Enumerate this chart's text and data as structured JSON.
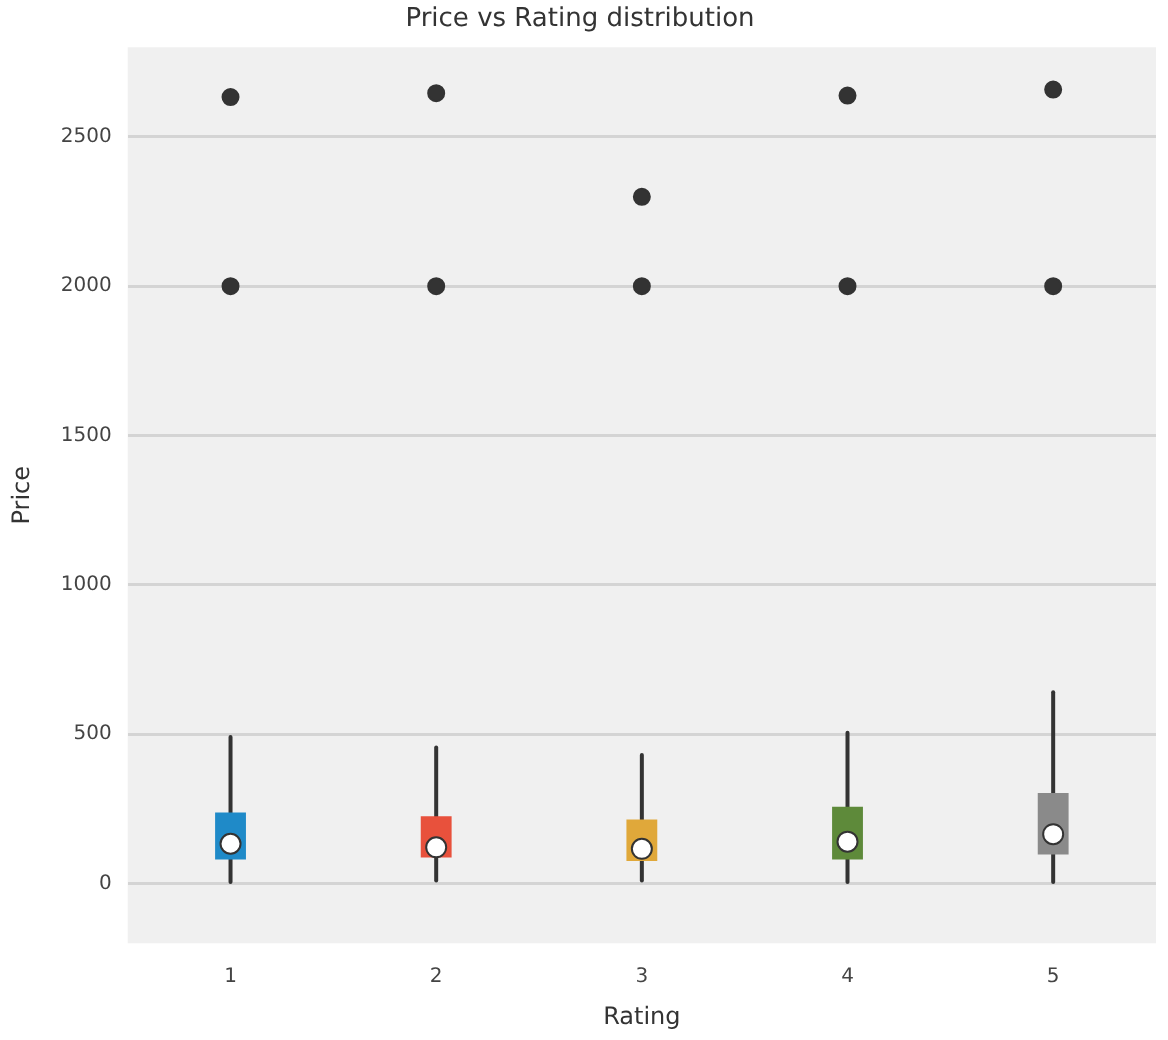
{
  "chart_data": {
    "type": "box",
    "title": "Price vs Rating distribution",
    "xlabel": "Rating",
    "ylabel": "Price",
    "categories": [
      "1",
      "2",
      "3",
      "4",
      "5"
    ],
    "colors": [
      "#1f8ac8",
      "#e8513c",
      "#e0a83a",
      "#5e8a3a",
      "#8a8a8a"
    ],
    "boxes": [
      {
        "low": 5,
        "q1": 80,
        "median": 133,
        "q3": 238,
        "high": 490,
        "outliers": [
          2000,
          2633
        ]
      },
      {
        "low": 10,
        "q1": 87,
        "median": 121,
        "q3": 225,
        "high": 455,
        "outliers": [
          2000,
          2646
        ]
      },
      {
        "low": 10,
        "q1": 75,
        "median": 116,
        "q3": 214,
        "high": 430,
        "outliers": [
          2000,
          2299
        ]
      },
      {
        "low": 5,
        "q1": 80,
        "median": 140,
        "q3": 257,
        "high": 505,
        "outliers": [
          2000,
          2638
        ]
      },
      {
        "low": 5,
        "q1": 97,
        "median": 165,
        "q3": 303,
        "high": 640,
        "outliers": [
          2000,
          2658
        ]
      }
    ],
    "ylim": [
      -200,
      2800
    ],
    "yticks": [
      0,
      500,
      1000,
      1500,
      2000,
      2500
    ],
    "grid": "y",
    "legend": false
  }
}
